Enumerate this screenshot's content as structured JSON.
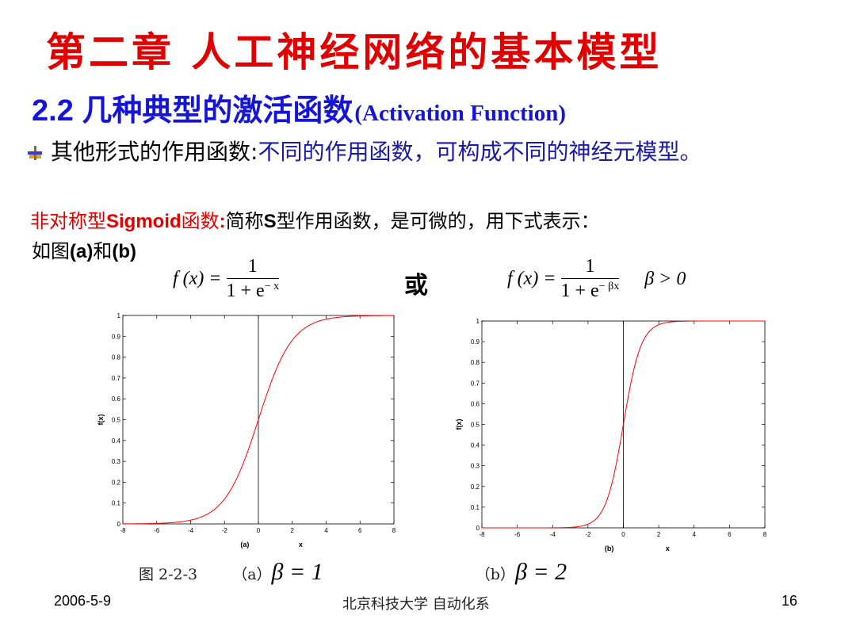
{
  "slide": {
    "title": "第二章 人工神经网络的基本模型",
    "subtitle_main": "2.2 几种典型的激活函数",
    "subtitle_en": "(Activation Function)",
    "bullet_black": "其他形式的作用函数",
    "bullet_colon": ":",
    "bullet_blue": "不同的作用函数，可构成不同的神经元模型。",
    "sigmoid_red_cn1": "非对称型",
    "sigmoid_red_en": "Sigmoid",
    "sigmoid_red_cn2": "函数",
    "sigmoid_red_colon": ":",
    "sigmoid_black_1": "简称",
    "sigmoid_black_S": "S",
    "sigmoid_black_2": "型作用函数，是可微的，用下式表示：",
    "figref_1": "如图",
    "figref_a": "(a)",
    "figref_2": "和",
    "figref_b": "(b)",
    "or_label": "或",
    "formula_a_lhs": "f (x) =",
    "formula_a_num": "1",
    "formula_a_den_base": "1 + e",
    "formula_a_den_exp": "− x",
    "formula_b_lhs": "f (x) =",
    "formula_b_num": "1",
    "formula_b_den_base": "1 + e",
    "formula_b_den_exp": "− βx",
    "formula_b_cond": "β > 0",
    "caption_fig": "图 2-2-3",
    "caption_a": "（a）",
    "caption_a_eq": "β = 1",
    "caption_b": "（b）",
    "caption_b_eq": "β = 2",
    "footer_date": "2006-5-9",
    "footer_org": "北京科技大学 自动化系",
    "footer_page": "16"
  },
  "colors": {
    "title": "#e00000",
    "subtitle": "#1515d8",
    "blue_text": "#1a1aa6",
    "curve": "#ff0000",
    "axis": "#000000"
  },
  "chart_data": [
    {
      "type": "line",
      "title": "",
      "xlabel": "x",
      "ylabel": "f(x)",
      "panel_label": "(a)",
      "xlim": [
        -8,
        8
      ],
      "ylim": [
        0,
        1
      ],
      "xticks": [
        "-8",
        "-6",
        "-4",
        "-2",
        "0",
        "2",
        "4",
        "6",
        "8"
      ],
      "yticks": [
        "0",
        "0.1",
        "0.2",
        "0.3",
        "0.4",
        "0.5",
        "0.6",
        "0.7",
        "0.8",
        "0.9",
        "1"
      ],
      "beta": 1,
      "series": [
        {
          "color": "#ff0000",
          "x": [
            -8,
            -7,
            -6,
            -5,
            -4,
            -3,
            -2,
            -1,
            0,
            1,
            2,
            3,
            4,
            5,
            6,
            7,
            8
          ],
          "y": [
            0.0003,
            0.0009,
            0.0025,
            0.0067,
            0.018,
            0.047,
            0.119,
            0.269,
            0.5,
            0.731,
            0.881,
            0.953,
            0.982,
            0.993,
            0.998,
            0.999,
            1.0
          ]
        }
      ]
    },
    {
      "type": "line",
      "title": "",
      "xlabel": "x",
      "ylabel": "f(x)",
      "panel_label": "(b)",
      "xlim": [
        -8,
        8
      ],
      "ylim": [
        0,
        1
      ],
      "xticks": [
        "-8",
        "-6",
        "-4",
        "-2",
        "0",
        "2",
        "4",
        "6",
        "8"
      ],
      "yticks": [
        "0",
        "0.1",
        "0.2",
        "0.3",
        "0.4",
        "0.5",
        "0.6",
        "0.7",
        "0.8",
        "0.9",
        "1"
      ],
      "beta": 2,
      "series": [
        {
          "color": "#ff0000",
          "x": [
            -8,
            -7,
            -6,
            -5,
            -4,
            -3,
            -2,
            -1,
            0,
            1,
            2,
            3,
            4,
            5,
            6,
            7,
            8
          ],
          "y": [
            0.0,
            0.0,
            0.0,
            0.0,
            0.0003,
            0.0025,
            0.018,
            0.119,
            0.5,
            0.881,
            0.982,
            0.998,
            1.0,
            1.0,
            1.0,
            1.0,
            1.0
          ]
        }
      ]
    }
  ]
}
